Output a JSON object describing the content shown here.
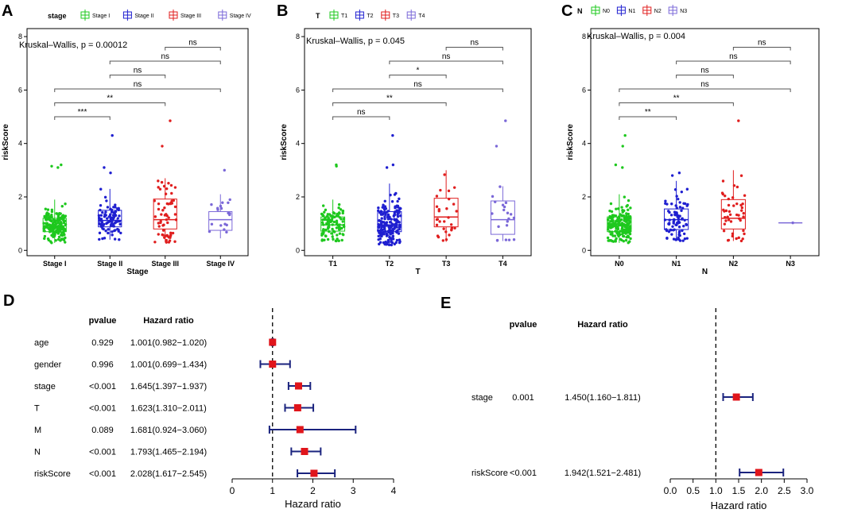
{
  "chart_data": [
    {
      "panel": "A",
      "type": "boxplot",
      "legend_title": "stage",
      "legend": [
        "Stage I",
        "Stage II",
        "Stage III",
        "Stage IV"
      ],
      "colors": [
        "#1ec81e",
        "#1f1fd0",
        "#e01e1e",
        "#7b68d8"
      ],
      "categories": [
        "Stage I",
        "Stage II",
        "Stage III",
        "Stage IV"
      ],
      "xlabel": "Stage",
      "ylabel": "riskScore",
      "ylim": [
        -0.2,
        8.3
      ],
      "yticks": [
        0,
        2,
        4,
        6,
        8
      ],
      "test": "Kruskal–Wallis, p = 0.00012",
      "boxes": [
        {
          "q1": 0.7,
          "median": 0.92,
          "q3": 1.2,
          "low": 0.28,
          "high": 1.9,
          "n": 180
        },
        {
          "q1": 0.88,
          "median": 1.12,
          "q3": 1.5,
          "low": 0.4,
          "high": 2.3,
          "n": 90
        },
        {
          "q1": 0.8,
          "median": 1.15,
          "q3": 1.92,
          "low": 0.3,
          "high": 2.7,
          "n": 60
        },
        {
          "q1": 0.75,
          "median": 1.15,
          "q3": 1.45,
          "low": 0.45,
          "high": 2.1,
          "n": 18
        }
      ],
      "outliers": [
        [
          0,
          3.2
        ],
        [
          0,
          3.1
        ],
        [
          0,
          3.15
        ],
        [
          1,
          4.3
        ],
        [
          1,
          3.1
        ],
        [
          1,
          2.9
        ],
        [
          2,
          4.85
        ],
        [
          2,
          3.9
        ],
        [
          3,
          3.0
        ]
      ],
      "comparisons": [
        {
          "a": 0,
          "b": 1,
          "label": "***"
        },
        {
          "a": 0,
          "b": 2,
          "label": "**"
        },
        {
          "a": 0,
          "b": 3,
          "label": "ns"
        },
        {
          "a": 1,
          "b": 2,
          "label": "ns"
        },
        {
          "a": 1,
          "b": 3,
          "label": "ns"
        },
        {
          "a": 2,
          "b": 3,
          "label": "ns"
        }
      ]
    },
    {
      "panel": "B",
      "type": "boxplot",
      "legend_title": "T",
      "legend": [
        "T1",
        "T2",
        "T3",
        "T4"
      ],
      "colors": [
        "#1ec81e",
        "#1f1fd0",
        "#e01e1e",
        "#7b68d8"
      ],
      "categories": [
        "T1",
        "T2",
        "T3",
        "T4"
      ],
      "xlabel": "T",
      "ylabel": "riskScore",
      "ylim": [
        -0.2,
        8.3
      ],
      "yticks": [
        0,
        2,
        4,
        6,
        8
      ],
      "test": "Kruskal–Wallis, p = 0.045",
      "boxes": [
        {
          "q1": 0.72,
          "median": 0.95,
          "q3": 1.25,
          "low": 0.35,
          "high": 1.9,
          "n": 100
        },
        {
          "q1": 0.7,
          "median": 0.95,
          "q3": 1.45,
          "low": 0.2,
          "high": 2.5,
          "n": 190
        },
        {
          "q1": 0.88,
          "median": 1.25,
          "q3": 1.95,
          "low": 0.32,
          "high": 3.0,
          "n": 30
        },
        {
          "q1": 0.6,
          "median": 1.15,
          "q3": 1.85,
          "low": 0.35,
          "high": 2.4,
          "n": 20
        }
      ],
      "outliers": [
        [
          0,
          3.2
        ],
        [
          0,
          3.15
        ],
        [
          1,
          4.3
        ],
        [
          1,
          3.2
        ],
        [
          1,
          3.1
        ],
        [
          3,
          4.85
        ],
        [
          3,
          3.9
        ]
      ],
      "comparisons": [
        {
          "a": 0,
          "b": 1,
          "label": "ns"
        },
        {
          "a": 0,
          "b": 2,
          "label": "**"
        },
        {
          "a": 0,
          "b": 3,
          "label": "ns"
        },
        {
          "a": 1,
          "b": 2,
          "label": "*"
        },
        {
          "a": 1,
          "b": 3,
          "label": "ns"
        },
        {
          "a": 2,
          "b": 3,
          "label": "ns"
        }
      ]
    },
    {
      "panel": "C",
      "type": "boxplot",
      "legend_title": "N",
      "legend": [
        "N0",
        "N1",
        "N2",
        "N3"
      ],
      "colors": [
        "#1ec81e",
        "#1f1fd0",
        "#e01e1e",
        "#7b68d8"
      ],
      "categories": [
        "N0",
        "N1",
        "N2",
        "N3"
      ],
      "xlabel": "N",
      "ylabel": "riskScore",
      "ylim": [
        -0.2,
        8.3
      ],
      "yticks": [
        0,
        2,
        4,
        6,
        8
      ],
      "test": "Kruskal–Wallis, p = 0.004",
      "boxes": [
        {
          "q1": 0.7,
          "median": 0.92,
          "q3": 1.25,
          "low": 0.28,
          "high": 2.1,
          "n": 200
        },
        {
          "q1": 0.78,
          "median": 1.15,
          "q3": 1.55,
          "low": 0.35,
          "high": 2.6,
          "n": 85
        },
        {
          "q1": 0.8,
          "median": 1.2,
          "q3": 1.9,
          "low": 0.35,
          "high": 3.0,
          "n": 45
        },
        {
          "q1": 1.03,
          "median": 1.03,
          "q3": 1.03,
          "low": 1.03,
          "high": 1.03,
          "n": 1
        }
      ],
      "outliers": [
        [
          0,
          4.3
        ],
        [
          0,
          3.9
        ],
        [
          0,
          3.2
        ],
        [
          0,
          3.1
        ],
        [
          1,
          2.9
        ],
        [
          1,
          2.8
        ],
        [
          2,
          4.85
        ]
      ],
      "comparisons": [
        {
          "a": 0,
          "b": 1,
          "label": "**"
        },
        {
          "a": 0,
          "b": 2,
          "label": "**"
        },
        {
          "a": 0,
          "b": 3,
          "label": "ns"
        },
        {
          "a": 1,
          "b": 2,
          "label": "ns"
        },
        {
          "a": 1,
          "b": 3,
          "label": "ns"
        },
        {
          "a": 2,
          "b": 3,
          "label": "ns"
        }
      ]
    },
    {
      "panel": "D",
      "type": "forest",
      "header_pvalue": "pvalue",
      "header_hr": "Hazard ratio",
      "xlabel": "Hazard ratio",
      "xlim": [
        0,
        4
      ],
      "xticks": [
        0,
        1,
        2,
        3,
        4
      ],
      "reference": 1,
      "rows": [
        {
          "var": "age",
          "pvalue": "0.929",
          "hr_text": "1.001(0.982−1.020)",
          "hr": 1.001,
          "lo": 0.982,
          "hi": 1.02
        },
        {
          "var": "gender",
          "pvalue": "0.996",
          "hr_text": "1.001(0.699−1.434)",
          "hr": 1.001,
          "lo": 0.699,
          "hi": 1.434
        },
        {
          "var": "stage",
          "pvalue": "<0.001",
          "hr_text": "1.645(1.397−1.937)",
          "hr": 1.645,
          "lo": 1.397,
          "hi": 1.937
        },
        {
          "var": "T",
          "pvalue": "<0.001",
          "hr_text": "1.623(1.310−2.011)",
          "hr": 1.623,
          "lo": 1.31,
          "hi": 2.011
        },
        {
          "var": "M",
          "pvalue": "0.089",
          "hr_text": "1.681(0.924−3.060)",
          "hr": 1.681,
          "lo": 0.924,
          "hi": 3.06
        },
        {
          "var": "N",
          "pvalue": "<0.001",
          "hr_text": "1.793(1.465−2.194)",
          "hr": 1.793,
          "lo": 1.465,
          "hi": 2.194
        },
        {
          "var": "riskScore",
          "pvalue": "<0.001",
          "hr_text": "2.028(1.617−2.545)",
          "hr": 2.028,
          "lo": 1.617,
          "hi": 2.545
        }
      ]
    },
    {
      "panel": "E",
      "type": "forest",
      "header_pvalue": "pvalue",
      "header_hr": "Hazard ratio",
      "xlabel": "Hazard ratio",
      "xlim": [
        0,
        3
      ],
      "xticks": [
        "0.0",
        "0.5",
        "1.0",
        "1.5",
        "2.0",
        "2.5",
        "3.0"
      ],
      "reference": 1,
      "rows": [
        {
          "var": "stage",
          "pvalue": "0.001",
          "hr_text": "1.450(1.160−1.811)",
          "hr": 1.45,
          "lo": 1.16,
          "hi": 1.811
        },
        {
          "var": "riskScore",
          "pvalue": "<0.001",
          "hr_text": "1.942(1.521−2.481)",
          "hr": 1.942,
          "lo": 1.521,
          "hi": 2.481
        }
      ]
    }
  ]
}
